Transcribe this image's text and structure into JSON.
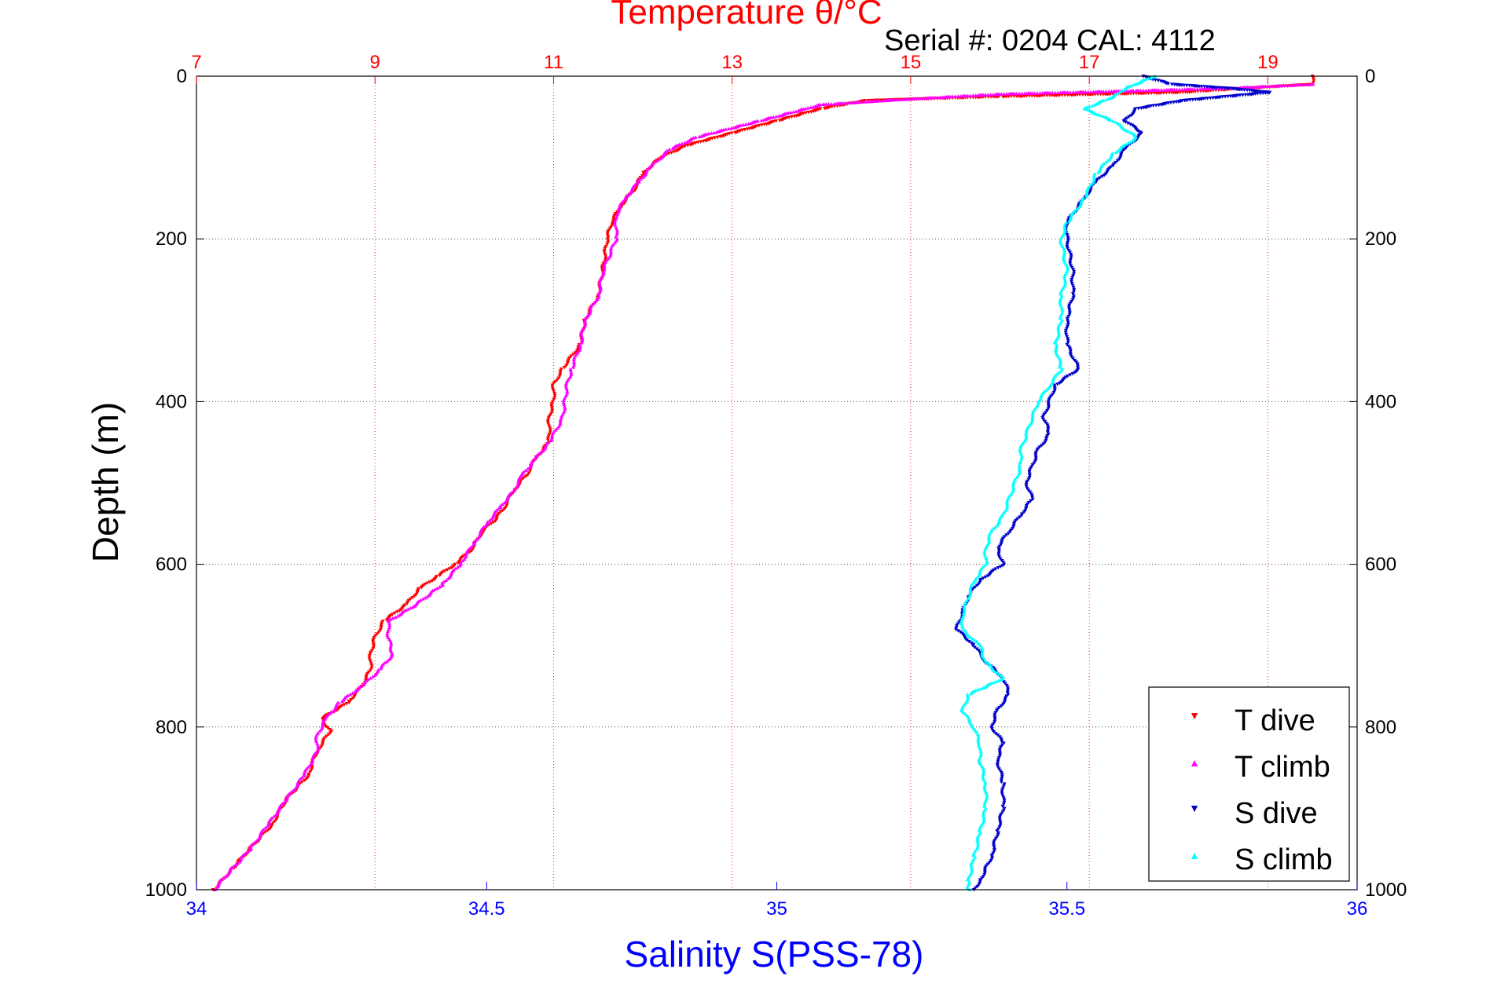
{
  "figure": {
    "top_title": "Temperature θ/°C",
    "serial_text": "Serial #: 0204  CAL: 4112"
  },
  "chart_data": {
    "type": "scatter",
    "title": "Temperature θ/°C",
    "annotation": "Serial #: 0204  CAL: 4112",
    "ylabel": "Depth (m)",
    "xlabel_bottom": "Salinity S(PSS-78)",
    "xlabel_top": "Temperature θ/°C",
    "ylim": [
      1000,
      0
    ],
    "y_reversed": true,
    "xlim_bottom": [
      34,
      36
    ],
    "xlim_top": [
      7,
      20
    ],
    "y_ticks": [
      "0",
      "200",
      "400",
      "600",
      "800",
      "1000"
    ],
    "x_bottom_ticks": [
      "34",
      "34.5",
      "35",
      "35.5",
      "36"
    ],
    "x_top_ticks": [
      "7",
      "9",
      "11",
      "13",
      "15",
      "17",
      "19"
    ],
    "grid": true,
    "legend_position": "bottom-right",
    "colors": {
      "temperature_axis": "#ff0000",
      "salinity_axis": "#0000ff",
      "t_dive": "#ff0000",
      "t_climb": "#ff00ff",
      "s_dive": "#0000cc",
      "s_climb": "#00ffff"
    },
    "series": [
      {
        "name": "T dive",
        "axis": "temperature",
        "marker": "down-triangle",
        "points": [
          [
            19.5,
            0
          ],
          [
            19.5,
            10
          ],
          [
            18.0,
            20
          ],
          [
            16.0,
            25
          ],
          [
            14.5,
            30
          ],
          [
            14.0,
            40
          ],
          [
            13.5,
            55
          ],
          [
            13.0,
            70
          ],
          [
            12.5,
            85
          ],
          [
            12.2,
            100
          ],
          [
            12.0,
            120
          ],
          [
            11.9,
            140
          ],
          [
            11.75,
            160
          ],
          [
            11.65,
            180
          ],
          [
            11.6,
            200
          ],
          [
            11.55,
            240
          ],
          [
            11.5,
            270
          ],
          [
            11.35,
            300
          ],
          [
            11.3,
            330
          ],
          [
            11.1,
            360
          ],
          [
            11.0,
            380
          ],
          [
            11.0,
            400
          ],
          [
            10.95,
            420
          ],
          [
            10.95,
            450
          ],
          [
            10.8,
            470
          ],
          [
            10.7,
            490
          ],
          [
            10.55,
            510
          ],
          [
            10.45,
            530
          ],
          [
            10.35,
            545
          ],
          [
            10.2,
            560
          ],
          [
            10.1,
            580
          ],
          [
            9.9,
            600
          ],
          [
            9.7,
            615
          ],
          [
            9.5,
            630
          ],
          [
            9.35,
            650
          ],
          [
            9.1,
            670
          ],
          [
            9.0,
            690
          ],
          [
            8.95,
            710
          ],
          [
            8.95,
            730
          ],
          [
            8.85,
            750
          ],
          [
            8.7,
            770
          ],
          [
            8.4,
            790
          ],
          [
            8.5,
            805
          ],
          [
            8.35,
            830
          ],
          [
            8.25,
            860
          ],
          [
            8.0,
            890
          ],
          [
            7.85,
            920
          ],
          [
            7.6,
            950
          ],
          [
            7.4,
            975
          ],
          [
            7.2,
            1000
          ]
        ]
      },
      {
        "name": "T climb",
        "axis": "temperature",
        "marker": "up-triangle",
        "points": [
          [
            19.5,
            10
          ],
          [
            18.5,
            15
          ],
          [
            17.5,
            18
          ],
          [
            16.0,
            22
          ],
          [
            15.0,
            28
          ],
          [
            14.0,
            35
          ],
          [
            13.3,
            55
          ],
          [
            12.6,
            75
          ],
          [
            12.3,
            90
          ],
          [
            12.1,
            110
          ],
          [
            11.95,
            130
          ],
          [
            11.8,
            150
          ],
          [
            11.7,
            170
          ],
          [
            11.7,
            200
          ],
          [
            11.55,
            240
          ],
          [
            11.5,
            270
          ],
          [
            11.35,
            300
          ],
          [
            11.3,
            330
          ],
          [
            11.2,
            360
          ],
          [
            11.15,
            380
          ],
          [
            11.1,
            420
          ],
          [
            10.95,
            450
          ],
          [
            10.8,
            470
          ],
          [
            10.65,
            490
          ],
          [
            10.55,
            510
          ],
          [
            10.4,
            530
          ],
          [
            10.25,
            550
          ],
          [
            10.1,
            575
          ],
          [
            9.95,
            600
          ],
          [
            9.75,
            625
          ],
          [
            9.45,
            650
          ],
          [
            9.15,
            670
          ],
          [
            9.15,
            690
          ],
          [
            9.2,
            710
          ],
          [
            9.05,
            730
          ],
          [
            8.85,
            750
          ],
          [
            8.6,
            770
          ],
          [
            8.45,
            790
          ],
          [
            8.35,
            810
          ],
          [
            8.35,
            830
          ],
          [
            8.2,
            860
          ],
          [
            8.0,
            890
          ],
          [
            7.8,
            920
          ],
          [
            7.6,
            950
          ],
          [
            7.35,
            980
          ],
          [
            7.2,
            1000
          ]
        ]
      },
      {
        "name": "S dive",
        "axis": "salinity",
        "marker": "down-triangle",
        "points": [
          [
            35.63,
            0
          ],
          [
            35.68,
            10
          ],
          [
            35.78,
            15
          ],
          [
            35.85,
            20
          ],
          [
            35.7,
            30
          ],
          [
            35.62,
            40
          ],
          [
            35.6,
            55
          ],
          [
            35.63,
            70
          ],
          [
            35.6,
            90
          ],
          [
            35.58,
            110
          ],
          [
            35.55,
            130
          ],
          [
            35.53,
            150
          ],
          [
            35.5,
            180
          ],
          [
            35.5,
            200
          ],
          [
            35.51,
            240
          ],
          [
            35.51,
            270
          ],
          [
            35.5,
            300
          ],
          [
            35.5,
            330
          ],
          [
            35.52,
            360
          ],
          [
            35.48,
            380
          ],
          [
            35.47,
            400
          ],
          [
            35.46,
            420
          ],
          [
            35.47,
            440
          ],
          [
            35.45,
            460
          ],
          [
            35.44,
            480
          ],
          [
            35.43,
            500
          ],
          [
            35.44,
            520
          ],
          [
            35.42,
            540
          ],
          [
            35.4,
            560
          ],
          [
            35.38,
            580
          ],
          [
            35.39,
            600
          ],
          [
            35.35,
            620
          ],
          [
            35.33,
            640
          ],
          [
            35.32,
            660
          ],
          [
            35.31,
            680
          ],
          [
            35.34,
            700
          ],
          [
            35.36,
            720
          ],
          [
            35.39,
            740
          ],
          [
            35.4,
            760
          ],
          [
            35.38,
            780
          ],
          [
            35.37,
            800
          ],
          [
            35.39,
            820
          ],
          [
            35.38,
            840
          ],
          [
            35.39,
            870
          ],
          [
            35.39,
            900
          ],
          [
            35.38,
            930
          ],
          [
            35.37,
            960
          ],
          [
            35.35,
            990
          ],
          [
            35.34,
            1000
          ]
        ]
      },
      {
        "name": "S climb",
        "axis": "salinity",
        "marker": "up-triangle",
        "points": [
          [
            35.65,
            0
          ],
          [
            35.6,
            15
          ],
          [
            35.58,
            25
          ],
          [
            35.53,
            40
          ],
          [
            35.58,
            55
          ],
          [
            35.62,
            75
          ],
          [
            35.58,
            95
          ],
          [
            35.55,
            120
          ],
          [
            35.53,
            150
          ],
          [
            35.5,
            180
          ],
          [
            35.49,
            200
          ],
          [
            35.5,
            240
          ],
          [
            35.49,
            270
          ],
          [
            35.49,
            300
          ],
          [
            35.48,
            330
          ],
          [
            35.49,
            360
          ],
          [
            35.47,
            380
          ],
          [
            35.45,
            400
          ],
          [
            35.44,
            420
          ],
          [
            35.43,
            440
          ],
          [
            35.42,
            460
          ],
          [
            35.42,
            480
          ],
          [
            35.41,
            500
          ],
          [
            35.4,
            520
          ],
          [
            35.39,
            540
          ],
          [
            35.37,
            560
          ],
          [
            35.36,
            580
          ],
          [
            35.36,
            600
          ],
          [
            35.34,
            620
          ],
          [
            35.33,
            640
          ],
          [
            35.32,
            660
          ],
          [
            35.32,
            680
          ],
          [
            35.35,
            700
          ],
          [
            35.36,
            720
          ],
          [
            35.39,
            740
          ],
          [
            35.33,
            760
          ],
          [
            35.32,
            780
          ],
          [
            35.34,
            800
          ],
          [
            35.35,
            820
          ],
          [
            35.35,
            840
          ],
          [
            35.36,
            870
          ],
          [
            35.36,
            900
          ],
          [
            35.35,
            930
          ],
          [
            35.34,
            960
          ],
          [
            35.33,
            990
          ],
          [
            35.33,
            1000
          ]
        ]
      }
    ]
  }
}
